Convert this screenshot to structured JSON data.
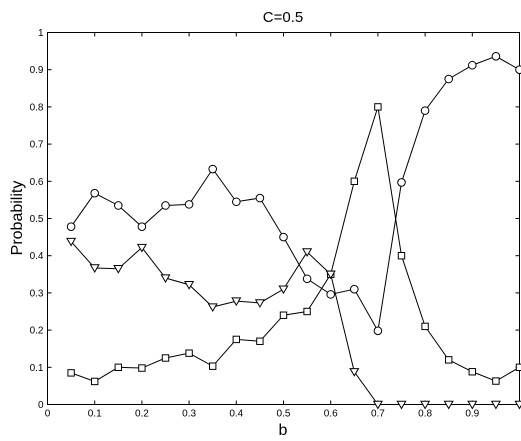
{
  "chart_data": {
    "type": "line",
    "title": "C=0.5",
    "xlabel": "b",
    "ylabel": "Probability",
    "xlim": [
      0,
      1
    ],
    "ylim": [
      0,
      1
    ],
    "grid": false,
    "x_ticks": [
      "0",
      "0.1",
      "0.2",
      "0.3",
      "0.4",
      "0.5",
      "0.6",
      "0.7",
      "0.8",
      "0.9"
    ],
    "y_ticks": [
      "0",
      "0.1",
      "0.2",
      "0.3",
      "0.4",
      "0.5",
      "0.6",
      "0.7",
      "0.8",
      "0.9",
      "1"
    ],
    "x": [
      0.05,
      0.1,
      0.15,
      0.2,
      0.25,
      0.3,
      0.35,
      0.4,
      0.45,
      0.5,
      0.55,
      0.6,
      0.65,
      0.7,
      0.75,
      0.8,
      0.85,
      0.9,
      0.95,
      1.0
    ],
    "series": [
      {
        "marker": "circle",
        "color": "#000000",
        "values": [
          0.478,
          0.568,
          0.535,
          0.478,
          0.535,
          0.538,
          0.633,
          0.545,
          0.555,
          0.45,
          0.338,
          0.296,
          0.31,
          0.198,
          0.597,
          0.79,
          0.875,
          0.912,
          0.936,
          0.9
        ]
      },
      {
        "marker": "square",
        "color": "#000000",
        "values": [
          0.085,
          0.062,
          0.1,
          0.098,
          0.125,
          0.138,
          0.103,
          0.175,
          0.17,
          0.24,
          0.25,
          0.35,
          0.6,
          0.8,
          0.4,
          0.21,
          0.12,
          0.088,
          0.063,
          0.1
        ]
      },
      {
        "marker": "triangle-down",
        "color": "#000000",
        "values": [
          0.438,
          0.367,
          0.365,
          0.422,
          0.34,
          0.322,
          0.262,
          0.278,
          0.273,
          0.31,
          0.41,
          0.35,
          0.088,
          0.0,
          0.0,
          0.0,
          0.0,
          0.0,
          0.0,
          0.0
        ]
      }
    ]
  }
}
